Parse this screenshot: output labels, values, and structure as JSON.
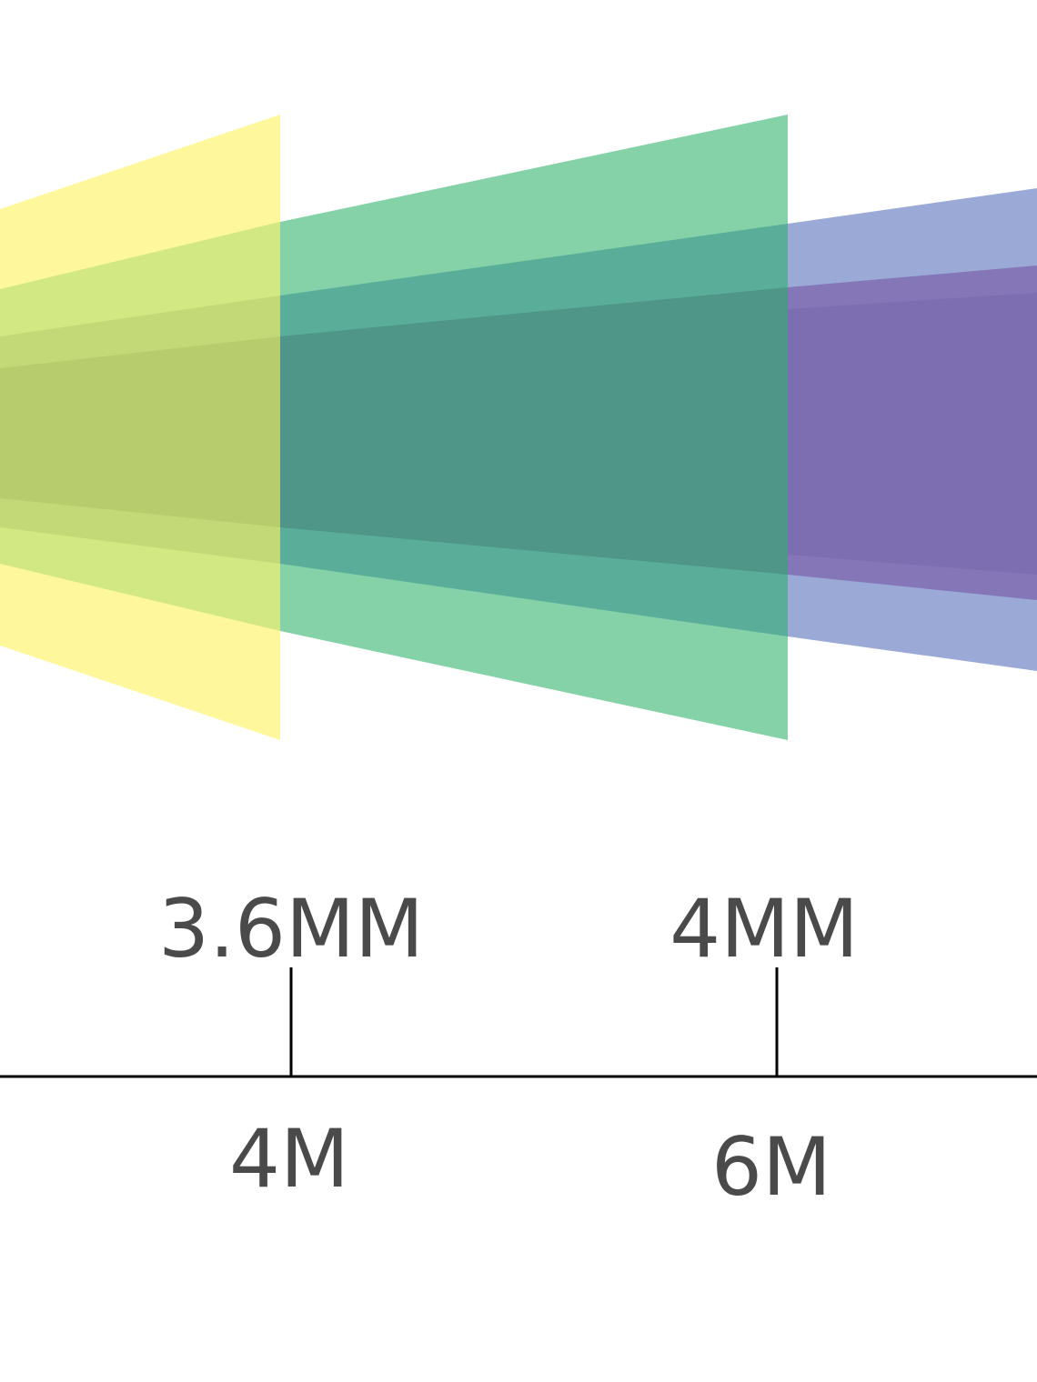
{
  "colors": {
    "background": "#ffffff",
    "band_outer_yellow": "#fff79b",
    "band_mid_yellow": "#d1e883",
    "band_inner_yellow": "#b7cc6d",
    "band_outer_green": "#85d2a8",
    "band_mid_green": "#5aae99",
    "band_inner_green": "#4f9688",
    "band_outer_purple": "#9aa9d6",
    "band_inner_purple": "#7d6eb2",
    "axis": "#000000",
    "text": "#4a4a4a"
  },
  "lens_labels": [
    {
      "focal": "3.6MM",
      "distance": "4M"
    },
    {
      "focal": "4MM",
      "distance": "6M"
    }
  ]
}
